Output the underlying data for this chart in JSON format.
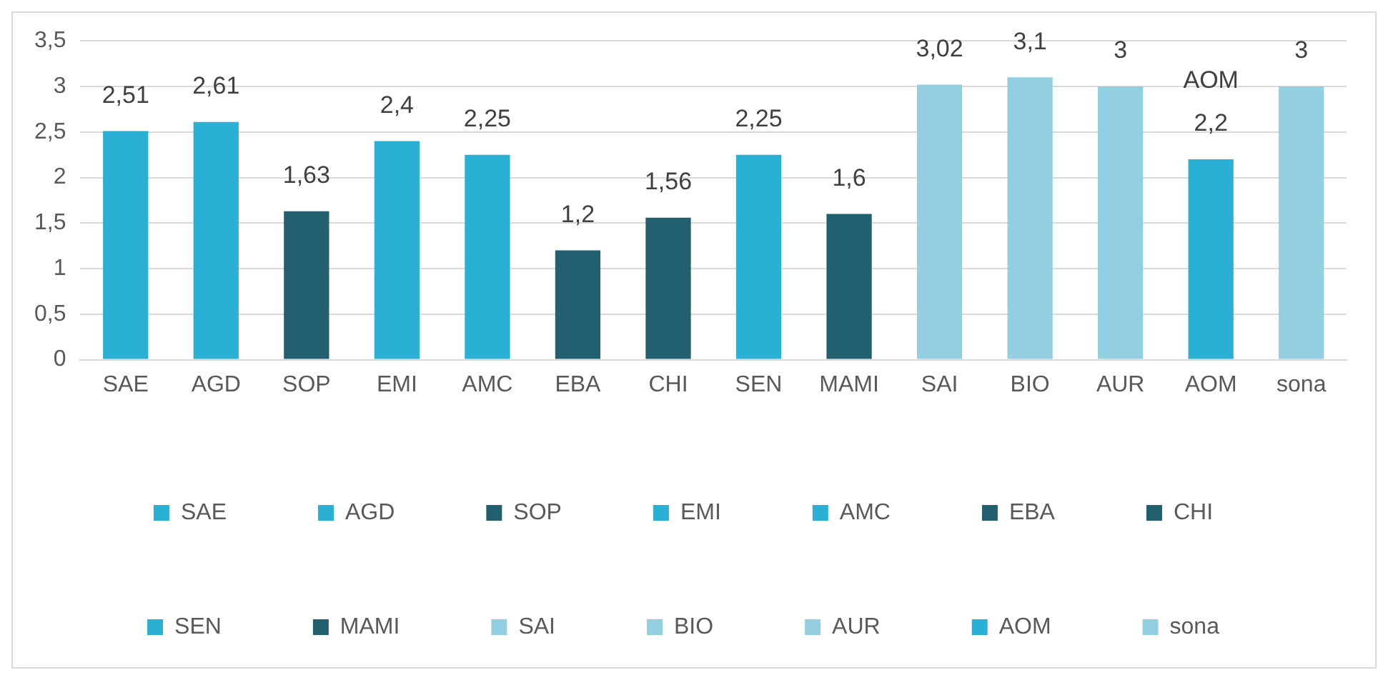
{
  "chart_data": {
    "type": "bar",
    "categories": [
      "SAE",
      "AGD",
      "SOP",
      "EMI",
      "AMC",
      "EBA",
      "CHI",
      "SEN",
      "MAMI",
      "SAI",
      "BIO",
      "AUR",
      "AOM",
      "sona"
    ],
    "series": [
      {
        "name": "SAE",
        "color": "#2ab0d4",
        "values": [
          2.51,
          null,
          null,
          null,
          null,
          null,
          null,
          null,
          null,
          null,
          null,
          null,
          null,
          null
        ],
        "value_labels": [
          "2,51",
          null,
          null,
          null,
          null,
          null,
          null,
          null,
          null,
          null,
          null,
          null,
          null,
          null
        ]
      },
      {
        "name": "AGD",
        "color": "#2ab0d4",
        "values": [
          null,
          2.61,
          null,
          null,
          null,
          null,
          null,
          null,
          null,
          null,
          null,
          null,
          null,
          null
        ],
        "value_labels": [
          null,
          "2,61",
          null,
          null,
          null,
          null,
          null,
          null,
          null,
          null,
          null,
          null,
          null,
          null
        ]
      },
      {
        "name": "SOP",
        "color": "#23606f",
        "values": [
          null,
          null,
          1.63,
          null,
          null,
          null,
          null,
          null,
          null,
          null,
          null,
          null,
          null,
          null
        ],
        "value_labels": [
          null,
          null,
          "1,63",
          null,
          null,
          null,
          null,
          null,
          null,
          null,
          null,
          null,
          null,
          null
        ]
      },
      {
        "name": "EMI",
        "color": "#2ab0d4",
        "values": [
          null,
          null,
          null,
          2.4,
          null,
          null,
          null,
          null,
          null,
          null,
          null,
          null,
          null,
          null
        ],
        "value_labels": [
          null,
          null,
          null,
          "2,4",
          null,
          null,
          null,
          null,
          null,
          null,
          null,
          null,
          null,
          null
        ]
      },
      {
        "name": "AMC",
        "color": "#2ab0d4",
        "values": [
          null,
          null,
          null,
          null,
          2.25,
          null,
          null,
          null,
          null,
          null,
          null,
          null,
          null,
          null
        ],
        "value_labels": [
          null,
          null,
          null,
          null,
          "2,25",
          null,
          null,
          null,
          null,
          null,
          null,
          null,
          null,
          null
        ]
      },
      {
        "name": "EBA",
        "color": "#23606f",
        "values": [
          null,
          null,
          null,
          null,
          null,
          1.2,
          null,
          null,
          null,
          null,
          null,
          null,
          null,
          null
        ],
        "value_labels": [
          null,
          null,
          null,
          null,
          null,
          "1,2",
          null,
          null,
          null,
          null,
          null,
          null,
          null,
          null
        ]
      },
      {
        "name": "CHI",
        "color": "#23606f",
        "values": [
          null,
          null,
          null,
          null,
          null,
          null,
          1.56,
          null,
          null,
          null,
          null,
          null,
          null,
          null
        ],
        "value_labels": [
          null,
          null,
          null,
          null,
          null,
          null,
          "1,56",
          null,
          null,
          null,
          null,
          null,
          null,
          null
        ]
      },
      {
        "name": "SEN",
        "color": "#2ab0d4",
        "values": [
          null,
          null,
          null,
          null,
          null,
          null,
          null,
          2.25,
          null,
          null,
          null,
          null,
          null,
          null
        ],
        "value_labels": [
          null,
          null,
          null,
          null,
          null,
          null,
          null,
          "2,25",
          null,
          null,
          null,
          null,
          null,
          null
        ]
      },
      {
        "name": "MAMI",
        "color": "#23606f",
        "values": [
          null,
          null,
          null,
          null,
          null,
          null,
          null,
          null,
          1.6,
          null,
          null,
          null,
          null,
          null
        ],
        "value_labels": [
          null,
          null,
          null,
          null,
          null,
          null,
          null,
          null,
          "1,6",
          null,
          null,
          null,
          null,
          null
        ]
      },
      {
        "name": "SAI",
        "color": "#93cfe0",
        "values": [
          null,
          null,
          null,
          null,
          null,
          null,
          null,
          null,
          null,
          3.02,
          null,
          null,
          null,
          null
        ],
        "value_labels": [
          null,
          null,
          null,
          null,
          null,
          null,
          null,
          null,
          null,
          "3,02",
          null,
          null,
          null,
          null
        ]
      },
      {
        "name": "BIO",
        "color": "#93cfe0",
        "values": [
          null,
          null,
          null,
          null,
          null,
          null,
          null,
          null,
          null,
          null,
          3.1,
          null,
          null,
          null
        ],
        "value_labels": [
          null,
          null,
          null,
          null,
          null,
          null,
          null,
          null,
          null,
          null,
          "3,1",
          null,
          null,
          null
        ]
      },
      {
        "name": "AUR",
        "color": "#93cfe0",
        "values": [
          null,
          null,
          null,
          null,
          null,
          null,
          null,
          null,
          null,
          null,
          null,
          3,
          null,
          null
        ],
        "value_labels": [
          null,
          null,
          null,
          null,
          null,
          null,
          null,
          null,
          null,
          null,
          null,
          "3",
          null,
          null
        ]
      },
      {
        "name": "AOM",
        "color": "#2ab0d4",
        "values": [
          null,
          null,
          null,
          null,
          null,
          null,
          null,
          null,
          null,
          null,
          null,
          null,
          2.2,
          null
        ],
        "value_labels": [
          null,
          null,
          null,
          null,
          null,
          null,
          null,
          null,
          null,
          null,
          null,
          null,
          "2,2",
          null
        ]
      },
      {
        "name": "sona",
        "color": "#93cfe0",
        "values": [
          null,
          null,
          null,
          null,
          null,
          null,
          null,
          null,
          null,
          null,
          null,
          null,
          null,
          3
        ],
        "value_labels": [
          null,
          null,
          null,
          null,
          null,
          null,
          null,
          null,
          null,
          null,
          null,
          null,
          null,
          "3"
        ]
      }
    ],
    "ylim": [
      0,
      3.5
    ],
    "yticks": [
      0,
      {
        "value": 0.5,
        "label": "0,5"
      },
      1,
      {
        "value": 1.5,
        "label": "1,5"
      },
      2,
      {
        "value": 2.5,
        "label": "2,5"
      },
      3,
      {
        "value": 3.5,
        "label": "3,5"
      }
    ],
    "grid": "y",
    "legend": "bottom",
    "annotations": [
      {
        "text": "AOM",
        "x": "AOM",
        "y": 2.2
      }
    ]
  }
}
